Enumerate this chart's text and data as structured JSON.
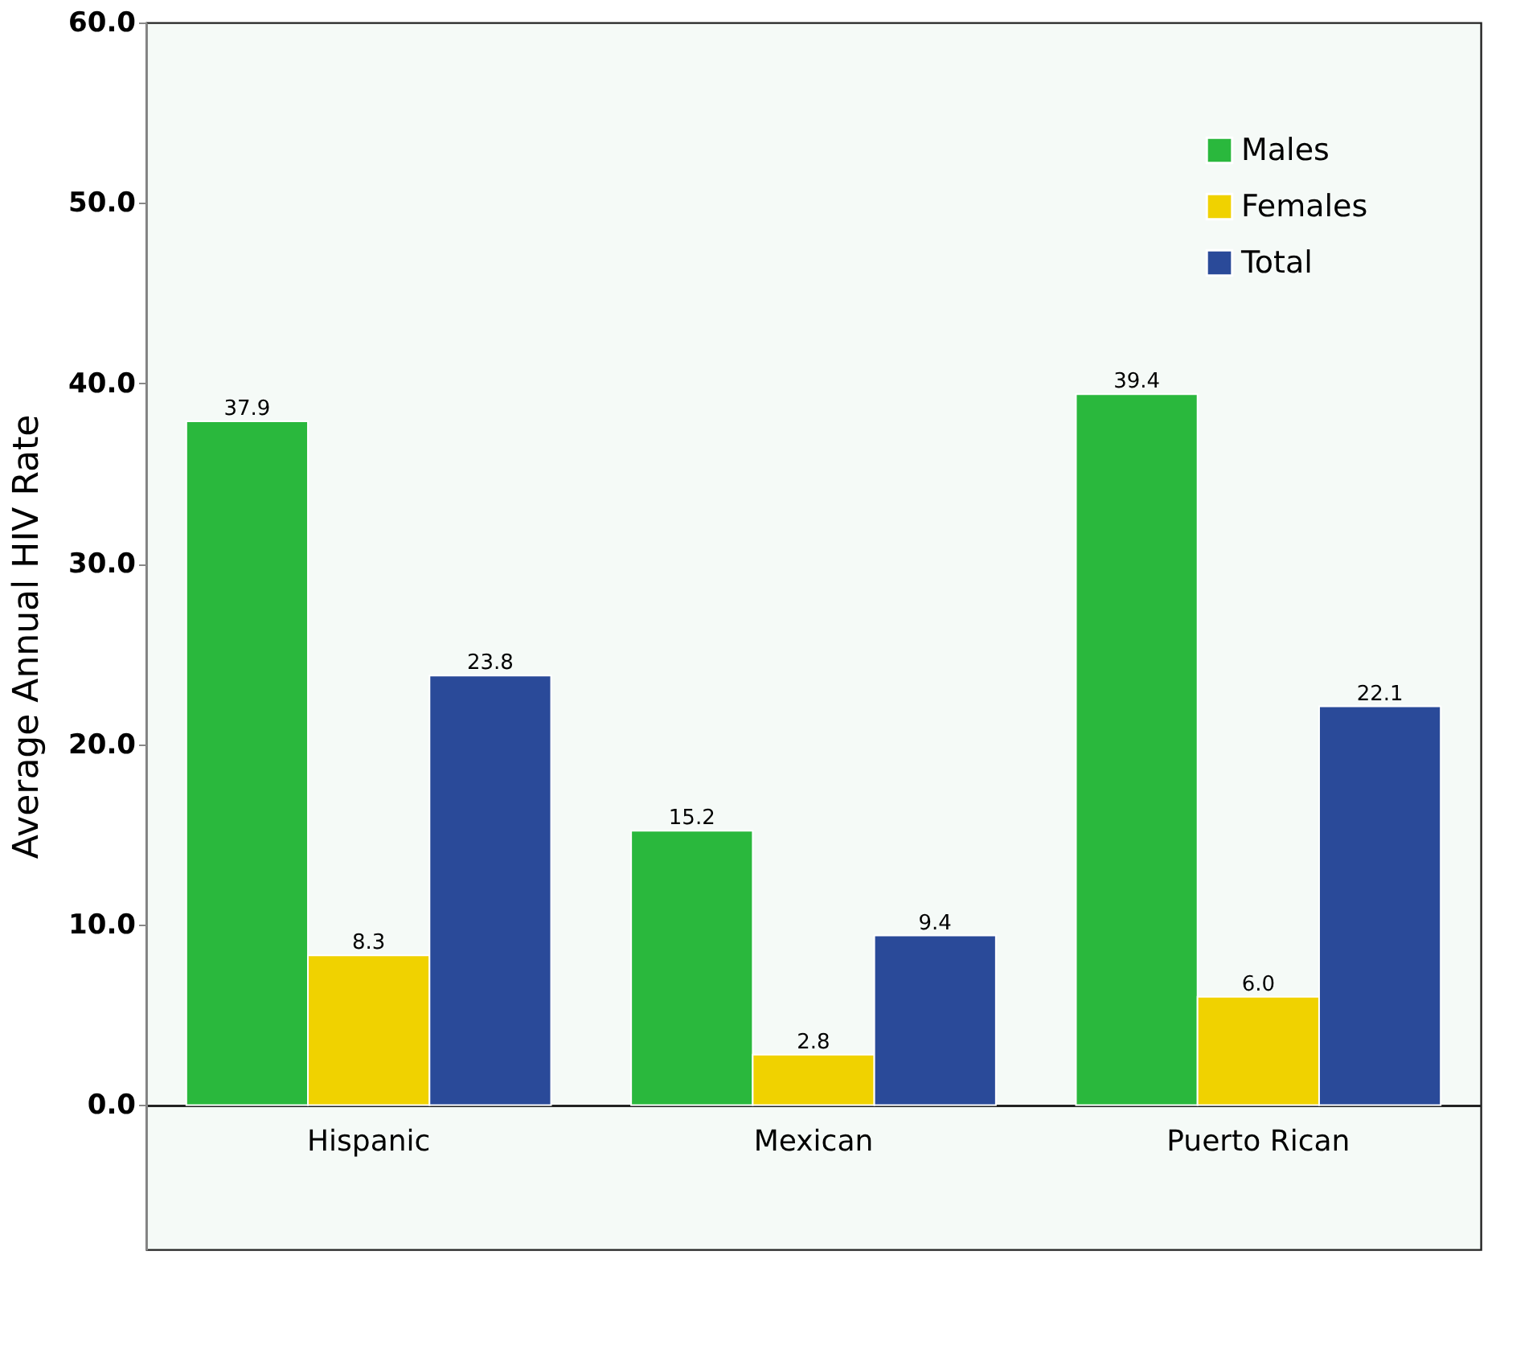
{
  "chart_data": {
    "type": "bar",
    "ylabel": "Average Annual HIV Rate",
    "categories": [
      "Hispanic",
      "Mexican",
      "Puerto Rican"
    ],
    "series": [
      {
        "name": "Males",
        "color": "#2ab83d",
        "values": [
          37.9,
          15.2,
          39.4
        ],
        "value_labels": [
          "37.9",
          "15.2",
          "39.4"
        ]
      },
      {
        "name": "Females",
        "color": "#f0d200",
        "values": [
          8.3,
          2.8,
          6.0
        ],
        "value_labels": [
          "8.3",
          "2.8",
          "6.0"
        ]
      },
      {
        "name": "Total",
        "color": "#2a4a99",
        "values": [
          23.8,
          9.4,
          22.1
        ],
        "value_labels": [
          "23.8",
          "9.4",
          "22.1"
        ]
      }
    ],
    "ylim": [
      -8,
      60
    ],
    "yticks": [
      {
        "value": 0,
        "label": "0.0"
      },
      {
        "value": 10,
        "label": "10.0"
      },
      {
        "value": 20,
        "label": "20.0"
      },
      {
        "value": 30,
        "label": "30.0"
      },
      {
        "value": 40,
        "label": "40.0"
      },
      {
        "value": 50,
        "label": "50.0"
      },
      {
        "value": 60,
        "label": "60.0"
      }
    ],
    "grid": false,
    "legend": "top right"
  }
}
